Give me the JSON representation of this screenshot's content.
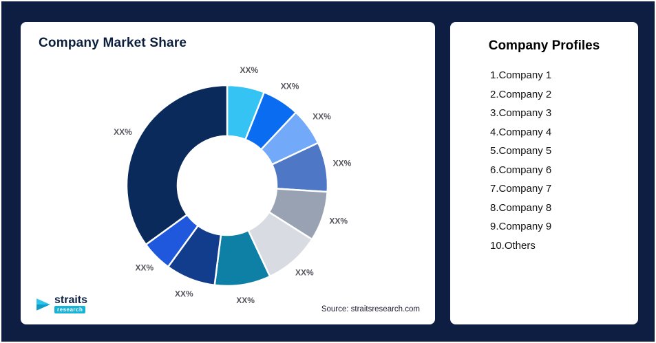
{
  "left_card": {
    "title": "Company Market Share",
    "source": "Source: straitsresearch.com",
    "logo": {
      "name": "straits",
      "sub": "research"
    }
  },
  "profiles": {
    "title": "Company Profiles",
    "items": [
      "1.Company 1",
      "2.Company 2",
      "3.Company 3",
      "4.Company 4",
      "5.Company 5",
      "6.Company 6",
      "7.Company 7",
      "8.Company 8",
      "9.Company 9",
      "10.Others"
    ]
  },
  "chart_data": {
    "type": "pie",
    "subtype": "donut",
    "title": "Company Market Share",
    "legend": "none",
    "labels": [
      "XX%",
      "XX%",
      "XX%",
      "XX%",
      "XX%",
      "XX%",
      "XX%",
      "XX%",
      "XX%",
      "XX%"
    ],
    "series": [
      {
        "name": "market-share-pct-estimated",
        "values": [
          6,
          6,
          6,
          8,
          8,
          9,
          9,
          8,
          5,
          35
        ]
      }
    ],
    "colors": [
      "#35C3F3",
      "#0A6CF0",
      "#72A9F8",
      "#4E77C6",
      "#98A2B3",
      "#D8DCE2",
      "#0E80A6",
      "#123C8C",
      "#1F58DC",
      "#0A2A5C"
    ]
  }
}
